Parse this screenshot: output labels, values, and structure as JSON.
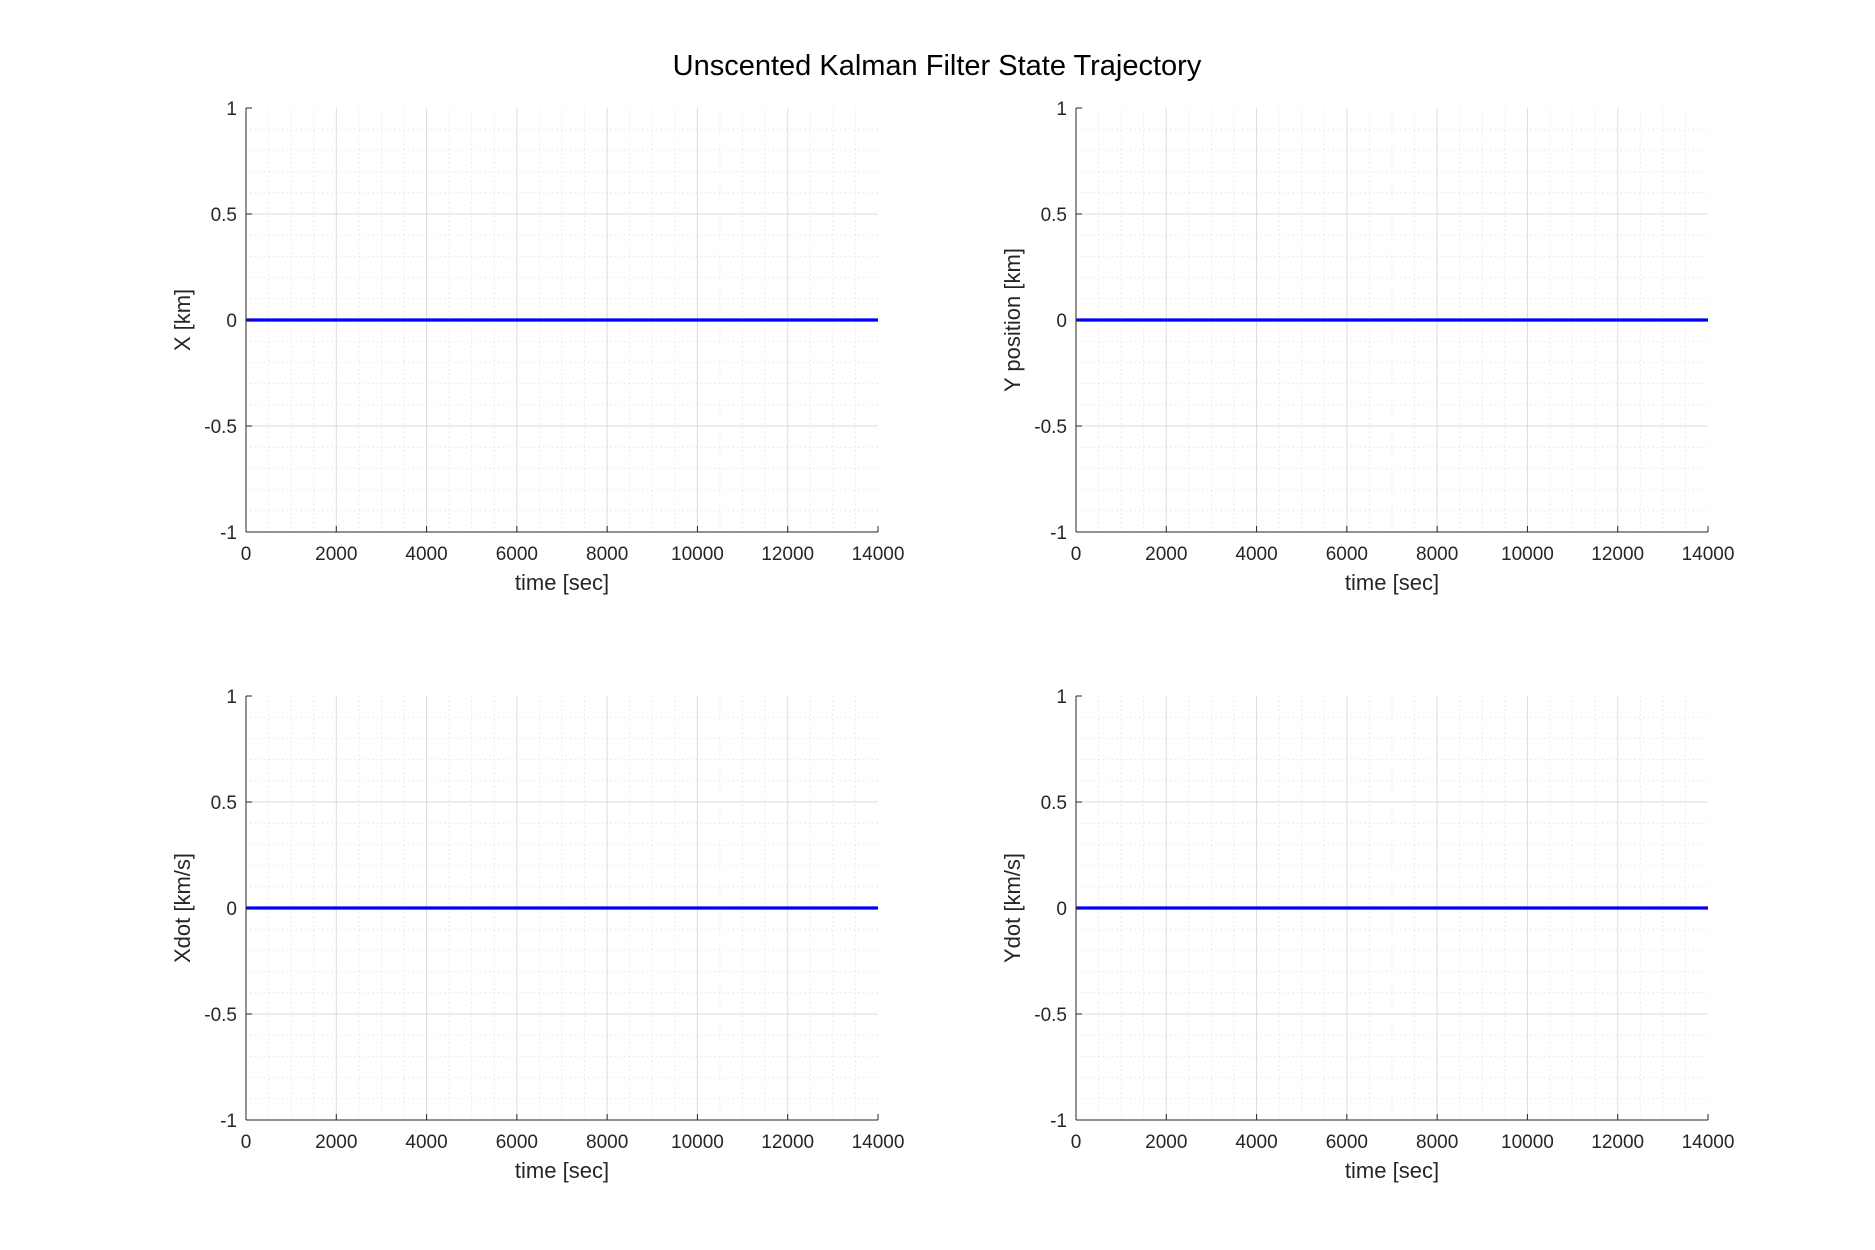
{
  "figure": {
    "title": "Unscented Kalman Filter State Trajectory"
  },
  "style": {
    "line_color": "#0000ff",
    "axis_color": "#262626",
    "grid_major_color": "#dcdcdc",
    "grid_minor_color": "#e6e6e6"
  },
  "chart_data": [
    {
      "type": "line",
      "xlabel": "time [sec]",
      "ylabel": "X [km]",
      "xlim": [
        0,
        14000
      ],
      "ylim": [
        -1,
        1
      ],
      "x_ticks": [
        "0",
        "2000",
        "4000",
        "6000",
        "8000",
        "10000",
        "12000",
        "14000"
      ],
      "y_ticks": [
        "-1",
        "-0.5",
        "0",
        "0.5",
        "1"
      ],
      "grid": true,
      "minor_grid": true,
      "series": [
        {
          "x": [
            0,
            14000
          ],
          "y": [
            0,
            0
          ]
        }
      ]
    },
    {
      "type": "line",
      "xlabel": "time [sec]",
      "ylabel": "Y position [km]",
      "xlim": [
        0,
        14000
      ],
      "ylim": [
        -1,
        1
      ],
      "x_ticks": [
        "0",
        "2000",
        "4000",
        "6000",
        "8000",
        "10000",
        "12000",
        "14000"
      ],
      "y_ticks": [
        "-1",
        "-0.5",
        "0",
        "0.5",
        "1"
      ],
      "grid": true,
      "minor_grid": true,
      "series": [
        {
          "x": [
            0,
            14000
          ],
          "y": [
            0,
            0
          ]
        }
      ]
    },
    {
      "type": "line",
      "xlabel": "time [sec]",
      "ylabel": "Xdot [km/s]",
      "xlim": [
        0,
        14000
      ],
      "ylim": [
        -1,
        1
      ],
      "x_ticks": [
        "0",
        "2000",
        "4000",
        "6000",
        "8000",
        "10000",
        "12000",
        "14000"
      ],
      "y_ticks": [
        "-1",
        "-0.5",
        "0",
        "0.5",
        "1"
      ],
      "grid": true,
      "minor_grid": true,
      "series": [
        {
          "x": [
            0,
            14000
          ],
          "y": [
            0,
            0
          ]
        }
      ]
    },
    {
      "type": "line",
      "xlabel": "time [sec]",
      "ylabel": "Ydot [km/s]",
      "xlim": [
        0,
        14000
      ],
      "ylim": [
        -1,
        1
      ],
      "x_ticks": [
        "0",
        "2000",
        "4000",
        "6000",
        "8000",
        "10000",
        "12000",
        "14000"
      ],
      "y_ticks": [
        "-1",
        "-0.5",
        "0",
        "0.5",
        "1"
      ],
      "grid": true,
      "minor_grid": true,
      "series": [
        {
          "x": [
            0,
            14000
          ],
          "y": [
            0,
            0
          ]
        }
      ]
    }
  ]
}
